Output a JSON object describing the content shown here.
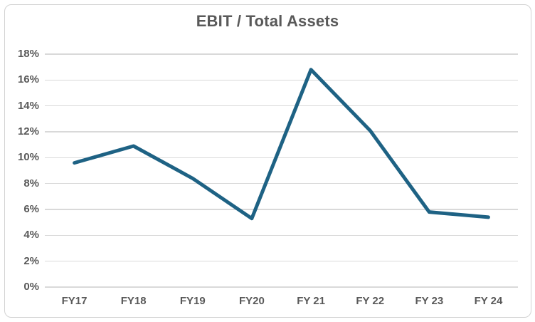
{
  "chart": {
    "colors": {
      "line": "#1e6284",
      "grid": "#d9d9d9",
      "text": "#595959",
      "frame_border": "#d2d2d2",
      "background": "#ffffff"
    }
  },
  "chart_data": {
    "type": "line",
    "title": "EBIT / Total Assets",
    "categories": [
      "FY17",
      "FY18",
      "FY19",
      "FY20",
      "FY 21",
      "FY 22",
      "FY 23",
      "FY 24"
    ],
    "values": [
      9.6,
      10.9,
      8.4,
      5.3,
      16.8,
      12.1,
      5.8,
      5.4
    ],
    "unit": "%",
    "xlabel": "",
    "ylabel": "",
    "ylim": [
      0,
      18
    ],
    "ytick_step": 2,
    "ytick_labels": [
      "0%",
      "2%",
      "4%",
      "6%",
      "8%",
      "10%",
      "12%",
      "14%",
      "16%",
      "18%"
    ],
    "grid": "horizontal",
    "legend": "none",
    "marker": "none",
    "line_width": 5
  }
}
